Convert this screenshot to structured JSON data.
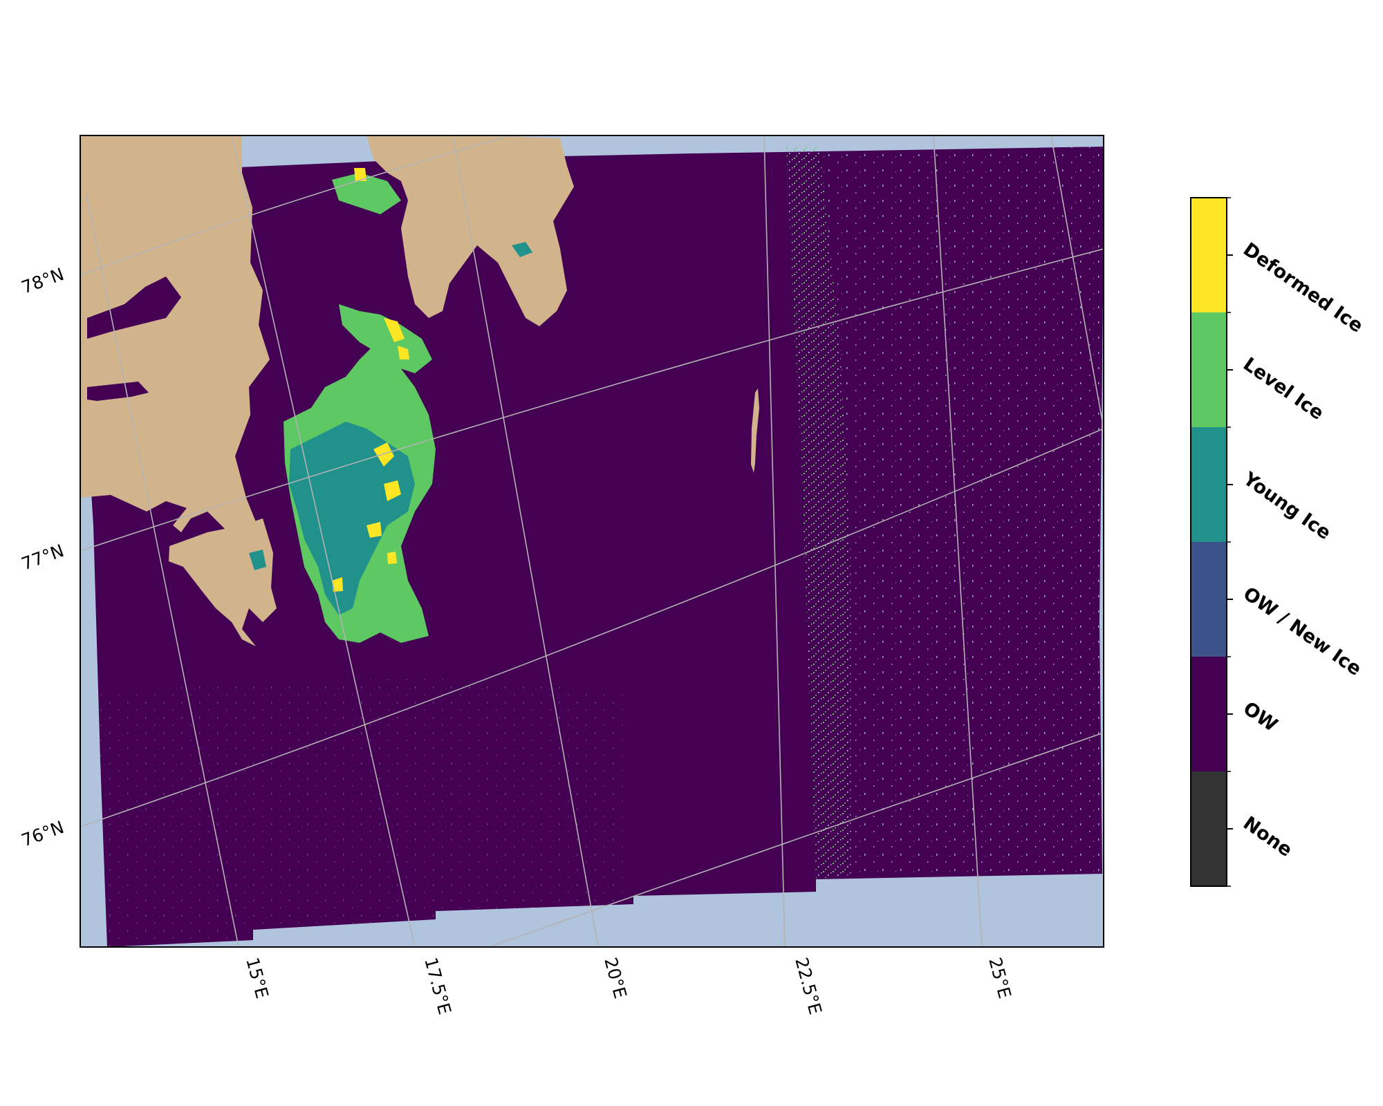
{
  "map": {
    "colors": {
      "ocean": "#b0c4de",
      "land": "#d2b48c",
      "gridline": "#b3b3b3",
      "frame": "#000000"
    },
    "latitude_labels": [
      "78°N",
      "77°N",
      "76°N"
    ],
    "longitude_labels": [
      "15°E",
      "17.5°E",
      "20°E",
      "22.5°E",
      "25°E"
    ]
  },
  "legend": {
    "classes": [
      {
        "name": "Deformed Ice",
        "color": "#fde725"
      },
      {
        "name": "Level Ice",
        "color": "#5ec962"
      },
      {
        "name": "Young Ice",
        "color": "#21918c"
      },
      {
        "name": "OW / New Ice",
        "color": "#3b528b"
      },
      {
        "name": "OW",
        "color": "#440154"
      },
      {
        "name": "None",
        "color": "#333333"
      }
    ]
  }
}
